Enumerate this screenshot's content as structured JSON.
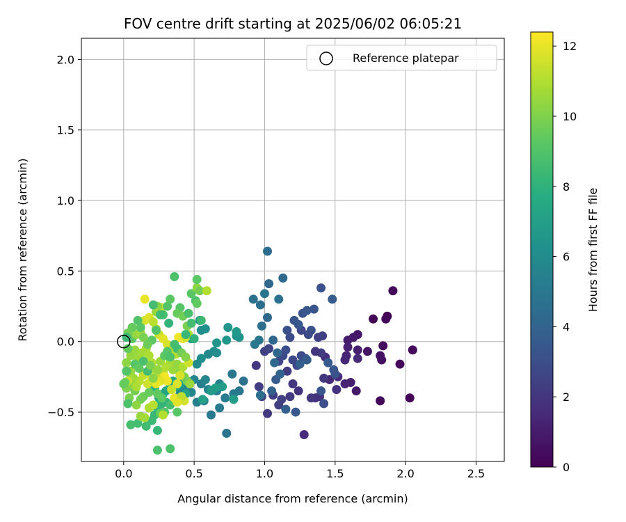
{
  "chart_data": {
    "type": "scatter",
    "title": "FOV centre drift starting at 2025/06/02 06:05:21",
    "xlabel": "Angular distance from reference (arcmin)",
    "ylabel": "Rotation from reference (arcmin)",
    "xlim": [
      -0.3,
      2.7
    ],
    "ylim": [
      -0.85,
      2.15
    ],
    "xticks": [
      0.0,
      0.5,
      1.0,
      1.5,
      2.0,
      2.5
    ],
    "xtick_labels": [
      "0.0",
      "0.5",
      "1.0",
      "1.5",
      "2.0",
      "2.5"
    ],
    "yticks": [
      -0.5,
      0.0,
      0.5,
      1.0,
      1.5,
      2.0
    ],
    "ytick_labels": [
      "−0.5",
      "0.0",
      "0.5",
      "1.0",
      "1.5",
      "2.0"
    ],
    "grid": true,
    "legend": {
      "placement": "top-right",
      "entries": [
        "Reference platepar"
      ]
    },
    "reference_point": {
      "x": 0.0,
      "y": 0.0,
      "marker": "open-circle"
    },
    "colorbar": {
      "label": "Hours from first FF file",
      "colormap": "viridis",
      "range": [
        0,
        12.4
      ],
      "ticks": [
        0,
        2,
        4,
        6,
        8,
        10,
        12
      ],
      "tick_labels": [
        "0",
        "2",
        "4",
        "6",
        "8",
        "10",
        "12"
      ]
    },
    "points": [
      [
        1.77,
        0.16,
        0.1
      ],
      [
        1.86,
        0.16,
        0.2
      ],
      [
        1.87,
        0.18,
        0.1
      ],
      [
        1.91,
        0.36,
        0.3
      ],
      [
        1.84,
        -0.03,
        0.4
      ],
      [
        2.05,
        -0.06,
        0.2
      ],
      [
        1.96,
        -0.16,
        0.3
      ],
      [
        2.03,
        -0.4,
        0.1
      ],
      [
        1.82,
        -0.42,
        0.2
      ],
      [
        1.83,
        -0.13,
        0.5
      ],
      [
        1.82,
        -0.1,
        0.6
      ],
      [
        1.73,
        -0.07,
        0.7
      ],
      [
        1.66,
        0.05,
        0.8
      ],
      [
        1.63,
        0.03,
        0.9
      ],
      [
        1.59,
        0.01,
        1.0
      ],
      [
        1.66,
        -0.06,
        1.1
      ],
      [
        1.59,
        -0.04,
        1.2
      ],
      [
        1.58,
        -0.1,
        1.3
      ],
      [
        1.57,
        -0.13,
        1.4
      ],
      [
        1.66,
        -0.12,
        1.5
      ],
      [
        1.65,
        -0.35,
        0.9
      ],
      [
        1.61,
        -0.29,
        1.1
      ],
      [
        1.57,
        -0.3,
        1.3
      ],
      [
        1.52,
        -0.25,
        1.6
      ],
      [
        1.51,
        -0.34,
        1.8
      ],
      [
        1.43,
        -0.11,
        1.7
      ],
      [
        1.46,
        -0.27,
        1.5
      ],
      [
        1.36,
        -0.4,
        1.9
      ],
      [
        1.33,
        -0.4,
        2.0
      ],
      [
        1.39,
        -0.39,
        1.8
      ],
      [
        1.42,
        -0.26,
        2.1
      ],
      [
        1.4,
        -0.08,
        2.2
      ],
      [
        1.41,
        0.04,
        2.3
      ],
      [
        1.38,
        0.03,
        2.4
      ],
      [
        1.36,
        -0.07,
        2.0
      ],
      [
        1.28,
        -0.66,
        1.6
      ],
      [
        1.24,
        -0.35,
        1.9
      ],
      [
        1.2,
        -0.3,
        2.0
      ],
      [
        1.16,
        -0.21,
        2.2
      ],
      [
        1.18,
        -0.39,
        2.1
      ],
      [
        1.1,
        -0.45,
        2.3
      ],
      [
        1.12,
        -0.41,
        2.4
      ],
      [
        1.06,
        -0.38,
        2.2
      ],
      [
        1.02,
        -0.51,
        2.1
      ],
      [
        0.98,
        -0.39,
        2.3
      ],
      [
        0.96,
        -0.32,
        2.2
      ],
      [
        0.94,
        -0.17,
        2.0
      ],
      [
        1.0,
        -0.07,
        2.4
      ],
      [
        1.03,
        -0.05,
        2.5
      ],
      [
        1.1,
        -0.14,
        2.6
      ],
      [
        1.13,
        -0.1,
        2.8
      ],
      [
        1.15,
        -0.06,
        3.0
      ],
      [
        1.2,
        -0.13,
        2.7
      ],
      [
        1.23,
        -0.17,
        2.6
      ],
      [
        1.26,
        -0.1,
        2.9
      ],
      [
        1.29,
        -0.12,
        3.1
      ],
      [
        1.33,
        0.08,
        3.2
      ],
      [
        1.31,
        0.05,
        2.8
      ],
      [
        1.26,
        0.08,
        2.7
      ],
      [
        1.18,
        0.03,
        2.9
      ],
      [
        1.16,
        0.08,
        3.0
      ],
      [
        1.21,
        0.15,
        3.3
      ],
      [
        1.24,
        0.12,
        3.4
      ],
      [
        1.27,
        0.2,
        3.2
      ],
      [
        1.3,
        0.22,
        3.5
      ],
      [
        1.35,
        0.23,
        3.3
      ],
      [
        1.4,
        0.38,
        3.1
      ],
      [
        1.48,
        0.3,
        3.6
      ],
      [
        1.49,
        -0.2,
        3.4
      ],
      [
        1.45,
        -0.15,
        3.6
      ],
      [
        1.5,
        -0.23,
        3.2
      ],
      [
        1.4,
        -0.35,
        3.3
      ],
      [
        1.42,
        -0.44,
        3.0
      ],
      [
        1.3,
        -0.13,
        3.7
      ],
      [
        1.25,
        -0.16,
        3.8
      ],
      [
        1.22,
        -0.5,
        3.5
      ],
      [
        1.15,
        -0.48,
        3.8
      ],
      [
        1.08,
        -0.27,
        3.6
      ],
      [
        1.05,
        -0.35,
        3.9
      ],
      [
        1.11,
        -0.23,
        4.0
      ],
      [
        1.09,
        -0.08,
        4.1
      ],
      [
        1.07,
        -0.15,
        4.2
      ],
      [
        1.13,
        0.45,
        4.3
      ],
      [
        1.03,
        0.41,
        4.1
      ],
      [
        1.02,
        0.64,
        4.4
      ],
      [
        0.97,
        0.26,
        4.5
      ],
      [
        0.92,
        0.3,
        4.6
      ],
      [
        1.02,
        0.17,
        4.3
      ],
      [
        0.98,
        0.11,
        4.5
      ],
      [
        1.06,
        0.01,
        4.2
      ],
      [
        1.1,
        0.3,
        4.7
      ],
      [
        1.0,
        0.34,
        4.8
      ],
      [
        0.96,
        0.01,
        4.9
      ],
      [
        0.93,
        -0.02,
        5.0
      ],
      [
        0.97,
        -0.38,
        4.6
      ],
      [
        0.85,
        -0.28,
        4.7
      ],
      [
        0.82,
        -0.35,
        4.9
      ],
      [
        0.77,
        -0.23,
        5.0
      ],
      [
        0.78,
        -0.37,
        5.1
      ],
      [
        0.73,
        -0.65,
        4.8
      ],
      [
        0.68,
        -0.47,
        5.2
      ],
      [
        0.62,
        -0.52,
        5.1
      ],
      [
        0.66,
        -0.35,
        5.3
      ],
      [
        0.68,
        -0.3,
        5.4
      ],
      [
        0.72,
        -0.4,
        5.2
      ],
      [
        0.6,
        -0.34,
        5.5
      ],
      [
        0.57,
        -0.42,
        5.6
      ],
      [
        0.52,
        -0.43,
        5.4
      ],
      [
        0.55,
        -0.3,
        5.3
      ],
      [
        0.5,
        -0.27,
        5.6
      ],
      [
        0.48,
        -0.36,
        5.7
      ],
      [
        0.45,
        -0.36,
        5.5
      ],
      [
        0.42,
        -0.33,
        5.8
      ],
      [
        0.4,
        -0.37,
        5.9
      ],
      [
        0.58,
        -0.27,
        5.7
      ],
      [
        0.6,
        -0.09,
        5.8
      ],
      [
        0.64,
        -0.07,
        6.0
      ],
      [
        0.66,
        -0.08,
        6.1
      ],
      [
        0.55,
        -0.12,
        6.2
      ],
      [
        0.52,
        -0.16,
        6.0
      ],
      [
        0.55,
        0.08,
        6.1
      ],
      [
        0.48,
        0.02,
        6.3
      ],
      [
        0.54,
        0.15,
        6.4
      ],
      [
        0.58,
        0.09,
        6.2
      ],
      [
        0.66,
        -0.01,
        6.5
      ],
      [
        0.73,
        0.01,
        6.6
      ],
      [
        0.74,
        0.1,
        6.5
      ],
      [
        0.8,
        0.04,
        6.3
      ],
      [
        0.82,
        0.03,
        6.4
      ],
      [
        0.8,
        0.07,
        6.7
      ],
      [
        0.7,
        -0.32,
        6.8
      ],
      [
        0.78,
        -0.41,
        6.9
      ],
      [
        0.65,
        -0.33,
        7.0
      ],
      [
        0.62,
        -0.35,
        6.8
      ],
      [
        0.56,
        -0.41,
        7.1
      ],
      [
        0.44,
        -0.37,
        7.2
      ],
      [
        0.4,
        -0.3,
        7.0
      ],
      [
        0.37,
        -0.32,
        7.3
      ],
      [
        0.35,
        -0.28,
        7.4
      ],
      [
        0.33,
        -0.31,
        7.5
      ],
      [
        0.3,
        -0.35,
        7.6
      ],
      [
        0.28,
        -0.37,
        7.2
      ],
      [
        0.25,
        -0.4,
        7.7
      ],
      [
        0.22,
        -0.33,
        7.8
      ],
      [
        0.2,
        -0.3,
        7.9
      ],
      [
        0.3,
        -0.43,
        8.0
      ],
      [
        0.27,
        -0.44,
        8.1
      ],
      [
        0.24,
        -0.47,
        8.2
      ],
      [
        0.22,
        -0.52,
        8.3
      ],
      [
        0.2,
        -0.56,
        8.4
      ],
      [
        0.16,
        -0.6,
        8.5
      ],
      [
        0.1,
        -0.58,
        8.6
      ],
      [
        0.05,
        -0.59,
        8.7
      ],
      [
        0.24,
        -0.63,
        8.3
      ],
      [
        0.24,
        -0.77,
        8.8
      ],
      [
        0.33,
        -0.76,
        8.9
      ],
      [
        0.29,
        -0.5,
        9.0
      ],
      [
        0.33,
        -0.45,
        8.7
      ],
      [
        0.36,
        -0.42,
        9.1
      ],
      [
        0.38,
        -0.5,
        9.2
      ],
      [
        0.27,
        -0.4,
        9.3
      ],
      [
        0.24,
        -0.37,
        9.4
      ],
      [
        0.18,
        -0.36,
        9.5
      ],
      [
        0.14,
        -0.39,
        9.6
      ],
      [
        0.12,
        -0.41,
        9.7
      ],
      [
        0.08,
        -0.35,
        9.8
      ],
      [
        0.04,
        -0.4,
        9.9
      ],
      [
        0.02,
        -0.33,
        10.0
      ],
      [
        0.03,
        -0.44,
        8.9
      ],
      [
        0.06,
        -0.3,
        10.1
      ],
      [
        0.04,
        -0.22,
        10.2
      ],
      [
        0.02,
        -0.15,
        10.3
      ],
      [
        0.05,
        -0.1,
        10.4
      ],
      [
        0.08,
        -0.06,
        10.5
      ],
      [
        0.1,
        -0.12,
        10.6
      ],
      [
        0.13,
        -0.08,
        10.7
      ],
      [
        0.16,
        -0.05,
        10.8
      ],
      [
        0.18,
        -0.1,
        10.9
      ],
      [
        0.2,
        -0.15,
        11.0
      ],
      [
        0.22,
        -0.2,
        11.1
      ],
      [
        0.25,
        -0.25,
        11.2
      ],
      [
        0.28,
        -0.22,
        11.3
      ],
      [
        0.3,
        -0.18,
        11.0
      ],
      [
        0.33,
        -0.14,
        10.8
      ],
      [
        0.35,
        -0.2,
        10.6
      ],
      [
        0.38,
        -0.16,
        10.4
      ],
      [
        0.4,
        -0.22,
        10.2
      ],
      [
        0.43,
        -0.25,
        10.0
      ],
      [
        0.45,
        -0.28,
        9.8
      ],
      [
        0.47,
        -0.3,
        10.5
      ],
      [
        0.42,
        -0.18,
        10.9
      ],
      [
        0.46,
        -0.15,
        11.5
      ],
      [
        0.4,
        -0.24,
        11.7
      ],
      [
        0.38,
        -0.3,
        11.8
      ],
      [
        0.36,
        -0.4,
        12.0
      ],
      [
        0.43,
        -0.42,
        11.6
      ],
      [
        0.41,
        -0.39,
        11.2
      ],
      [
        0.34,
        -0.34,
        11.4
      ],
      [
        0.31,
        -0.28,
        12.1
      ],
      [
        0.29,
        -0.25,
        12.2
      ],
      [
        0.26,
        -0.28,
        11.9
      ],
      [
        0.23,
        -0.3,
        12.0
      ],
      [
        0.2,
        -0.26,
        11.7
      ],
      [
        0.17,
        -0.3,
        11.5
      ],
      [
        0.14,
        -0.24,
        11.3
      ],
      [
        0.11,
        -0.28,
        11.1
      ],
      [
        0.09,
        -0.32,
        10.9
      ],
      [
        0.07,
        -0.26,
        10.7
      ],
      [
        0.05,
        -0.21,
        10.5
      ],
      [
        0.03,
        -0.28,
        11.4
      ],
      [
        0.02,
        -0.21,
        10.0
      ],
      [
        0.01,
        -0.29,
        9.6
      ],
      [
        0.03,
        -0.05,
        9.4
      ],
      [
        0.06,
        0.02,
        9.2
      ],
      [
        0.09,
        0.05,
        10.4
      ],
      [
        0.12,
        0.06,
        10.7
      ],
      [
        0.15,
        0.15,
        11.6
      ],
      [
        0.18,
        0.17,
        11.8
      ],
      [
        0.21,
        0.14,
        11.2
      ],
      [
        0.23,
        0.09,
        10.9
      ],
      [
        0.25,
        0.05,
        11.4
      ],
      [
        0.28,
        0.02,
        11.9
      ],
      [
        0.31,
        -0.02,
        11.7
      ],
      [
        0.34,
        -0.06,
        11.3
      ],
      [
        0.37,
        -0.09,
        11.0
      ],
      [
        0.39,
        0.03,
        12.1
      ],
      [
        0.42,
        0.02,
        12.0
      ],
      [
        0.44,
        0.03,
        11.6
      ],
      [
        0.46,
        0.05,
        10.9
      ],
      [
        0.15,
        0.3,
        12.0
      ],
      [
        0.27,
        0.24,
        11.2
      ],
      [
        0.24,
        0.25,
        10.2
      ],
      [
        0.23,
        0.21,
        10.5
      ],
      [
        0.21,
        0.26,
        8.6
      ],
      [
        0.28,
        0.19,
        8.8
      ],
      [
        0.31,
        0.25,
        9.0
      ],
      [
        0.33,
        0.3,
        9.3
      ],
      [
        0.36,
        0.46,
        8.9
      ],
      [
        0.4,
        0.24,
        9.1
      ],
      [
        0.38,
        0.2,
        9.5
      ],
      [
        0.42,
        0.18,
        9.7
      ],
      [
        0.45,
        0.11,
        9.9
      ],
      [
        0.48,
        0.34,
        9.2
      ],
      [
        0.52,
        0.38,
        10.3
      ],
      [
        0.51,
        0.29,
        8.9
      ],
      [
        0.52,
        0.27,
        9.4
      ],
      [
        0.54,
        0.36,
        9.8
      ],
      [
        0.59,
        0.36,
        11.0
      ],
      [
        0.52,
        0.44,
        9.3
      ],
      [
        0.55,
        0.15,
        8.4
      ],
      [
        0.5,
        0.02,
        8.0
      ],
      [
        0.48,
        0.13,
        8.6
      ],
      [
        0.46,
        0.2,
        8.8
      ],
      [
        0.44,
        0.05,
        8.3
      ],
      [
        0.32,
        0.13,
        8.1
      ],
      [
        0.26,
        0.19,
        8.5
      ],
      [
        0.23,
        0.08,
        9.0
      ],
      [
        0.2,
        0.01,
        9.3
      ],
      [
        0.17,
        -0.02,
        9.6
      ],
      [
        0.14,
        0.03,
        9.9
      ],
      [
        0.12,
        0.1,
        9.2
      ],
      [
        0.1,
        0.15,
        9.0
      ],
      [
        0.06,
        0.1,
        9.5
      ],
      [
        0.03,
        0.06,
        9.7
      ],
      [
        0.02,
        0.03,
        8.4
      ],
      [
        0.08,
        -0.16,
        9.1
      ],
      [
        0.11,
        -0.19,
        9.4
      ],
      [
        0.14,
        -0.14,
        8.8
      ],
      [
        0.17,
        -0.21,
        8.6
      ],
      [
        0.19,
        -0.17,
        9.9
      ],
      [
        0.21,
        -0.26,
        10.2
      ],
      [
        0.24,
        -0.2,
        10.4
      ],
      [
        0.26,
        -0.14,
        10.6
      ],
      [
        0.29,
        -0.1,
        9.3
      ],
      [
        0.31,
        -0.07,
        9.1
      ],
      [
        0.33,
        -0.11,
        8.9
      ],
      [
        0.36,
        -0.02,
        8.7
      ],
      [
        0.38,
        -0.05,
        8.5
      ],
      [
        0.41,
        -0.08,
        9.8
      ],
      [
        0.44,
        -0.11,
        10.1
      ],
      [
        0.09,
        -0.45,
        10.3
      ],
      [
        0.12,
        -0.53,
        10.5
      ],
      [
        0.15,
        -0.54,
        10.7
      ],
      [
        0.18,
        -0.47,
        10.9
      ],
      [
        0.21,
        -0.45,
        11.1
      ],
      [
        0.26,
        -0.51,
        9.5
      ],
      [
        0.28,
        -0.52,
        11.0
      ],
      [
        0.38,
        -0.43,
        11.9
      ],
      [
        0.02,
        -0.21,
        9.0
      ],
      [
        0.0,
        -0.3,
        9.5
      ]
    ]
  }
}
